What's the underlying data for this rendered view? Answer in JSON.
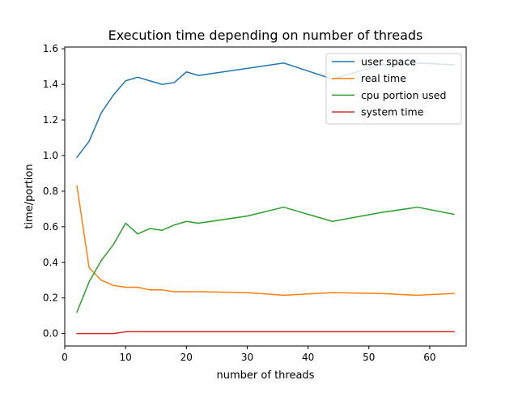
{
  "chart_data": {
    "type": "line",
    "title": "Execution time depending on number of threads",
    "xlabel": "number of threads",
    "ylabel": "time/portion",
    "xlim": [
      0,
      66
    ],
    "ylim": [
      -0.07,
      1.61
    ],
    "xticks": [
      0,
      10,
      20,
      30,
      40,
      50,
      60
    ],
    "yticks": [
      0.0,
      0.2,
      0.4,
      0.6,
      0.8,
      1.0,
      1.2,
      1.4,
      1.6
    ],
    "xtick_labels": [
      "0",
      "10",
      "20",
      "30",
      "40",
      "50",
      "60"
    ],
    "ytick_labels": [
      "0.0",
      "0.2",
      "0.4",
      "0.6",
      "0.8",
      "1.0",
      "1.2",
      "1.4",
      "1.6"
    ],
    "grid": false,
    "legend_position": "top-right",
    "series": [
      {
        "name": "user space",
        "color": "#1f77b4",
        "x": [
          2,
          4,
          6,
          8,
          10,
          12,
          14,
          16,
          18,
          20,
          22,
          30,
          36,
          44,
          52,
          58,
          64
        ],
        "y": [
          0.99,
          1.08,
          1.24,
          1.34,
          1.42,
          1.44,
          1.42,
          1.4,
          1.41,
          1.47,
          1.45,
          1.49,
          1.52,
          1.43,
          1.51,
          1.52,
          1.51
        ]
      },
      {
        "name": "real time",
        "color": "#ff7f0e",
        "x": [
          2,
          4,
          6,
          8,
          10,
          12,
          14,
          16,
          18,
          20,
          22,
          30,
          36,
          44,
          52,
          58,
          64
        ],
        "y": [
          0.83,
          0.37,
          0.3,
          0.27,
          0.26,
          0.26,
          0.245,
          0.245,
          0.235,
          0.235,
          0.235,
          0.23,
          0.215,
          0.23,
          0.225,
          0.215,
          0.225
        ]
      },
      {
        "name": "cpu portion used",
        "color": "#2ca02c",
        "x": [
          2,
          4,
          6,
          8,
          10,
          12,
          14,
          16,
          18,
          20,
          22,
          30,
          36,
          44,
          52,
          58,
          64
        ],
        "y": [
          0.12,
          0.29,
          0.41,
          0.5,
          0.62,
          0.56,
          0.59,
          0.58,
          0.61,
          0.63,
          0.62,
          0.66,
          0.71,
          0.63,
          0.68,
          0.71,
          0.67
        ]
      },
      {
        "name": "system time",
        "color": "#d62728",
        "x": [
          2,
          4,
          6,
          8,
          10,
          12,
          14,
          16,
          18,
          20,
          22,
          30,
          36,
          44,
          52,
          58,
          64
        ],
        "y": [
          0.0,
          0.0,
          0.0,
          0.0,
          0.01,
          0.01,
          0.01,
          0.01,
          0.01,
          0.01,
          0.01,
          0.01,
          0.01,
          0.01,
          0.01,
          0.01,
          0.01
        ]
      }
    ]
  }
}
